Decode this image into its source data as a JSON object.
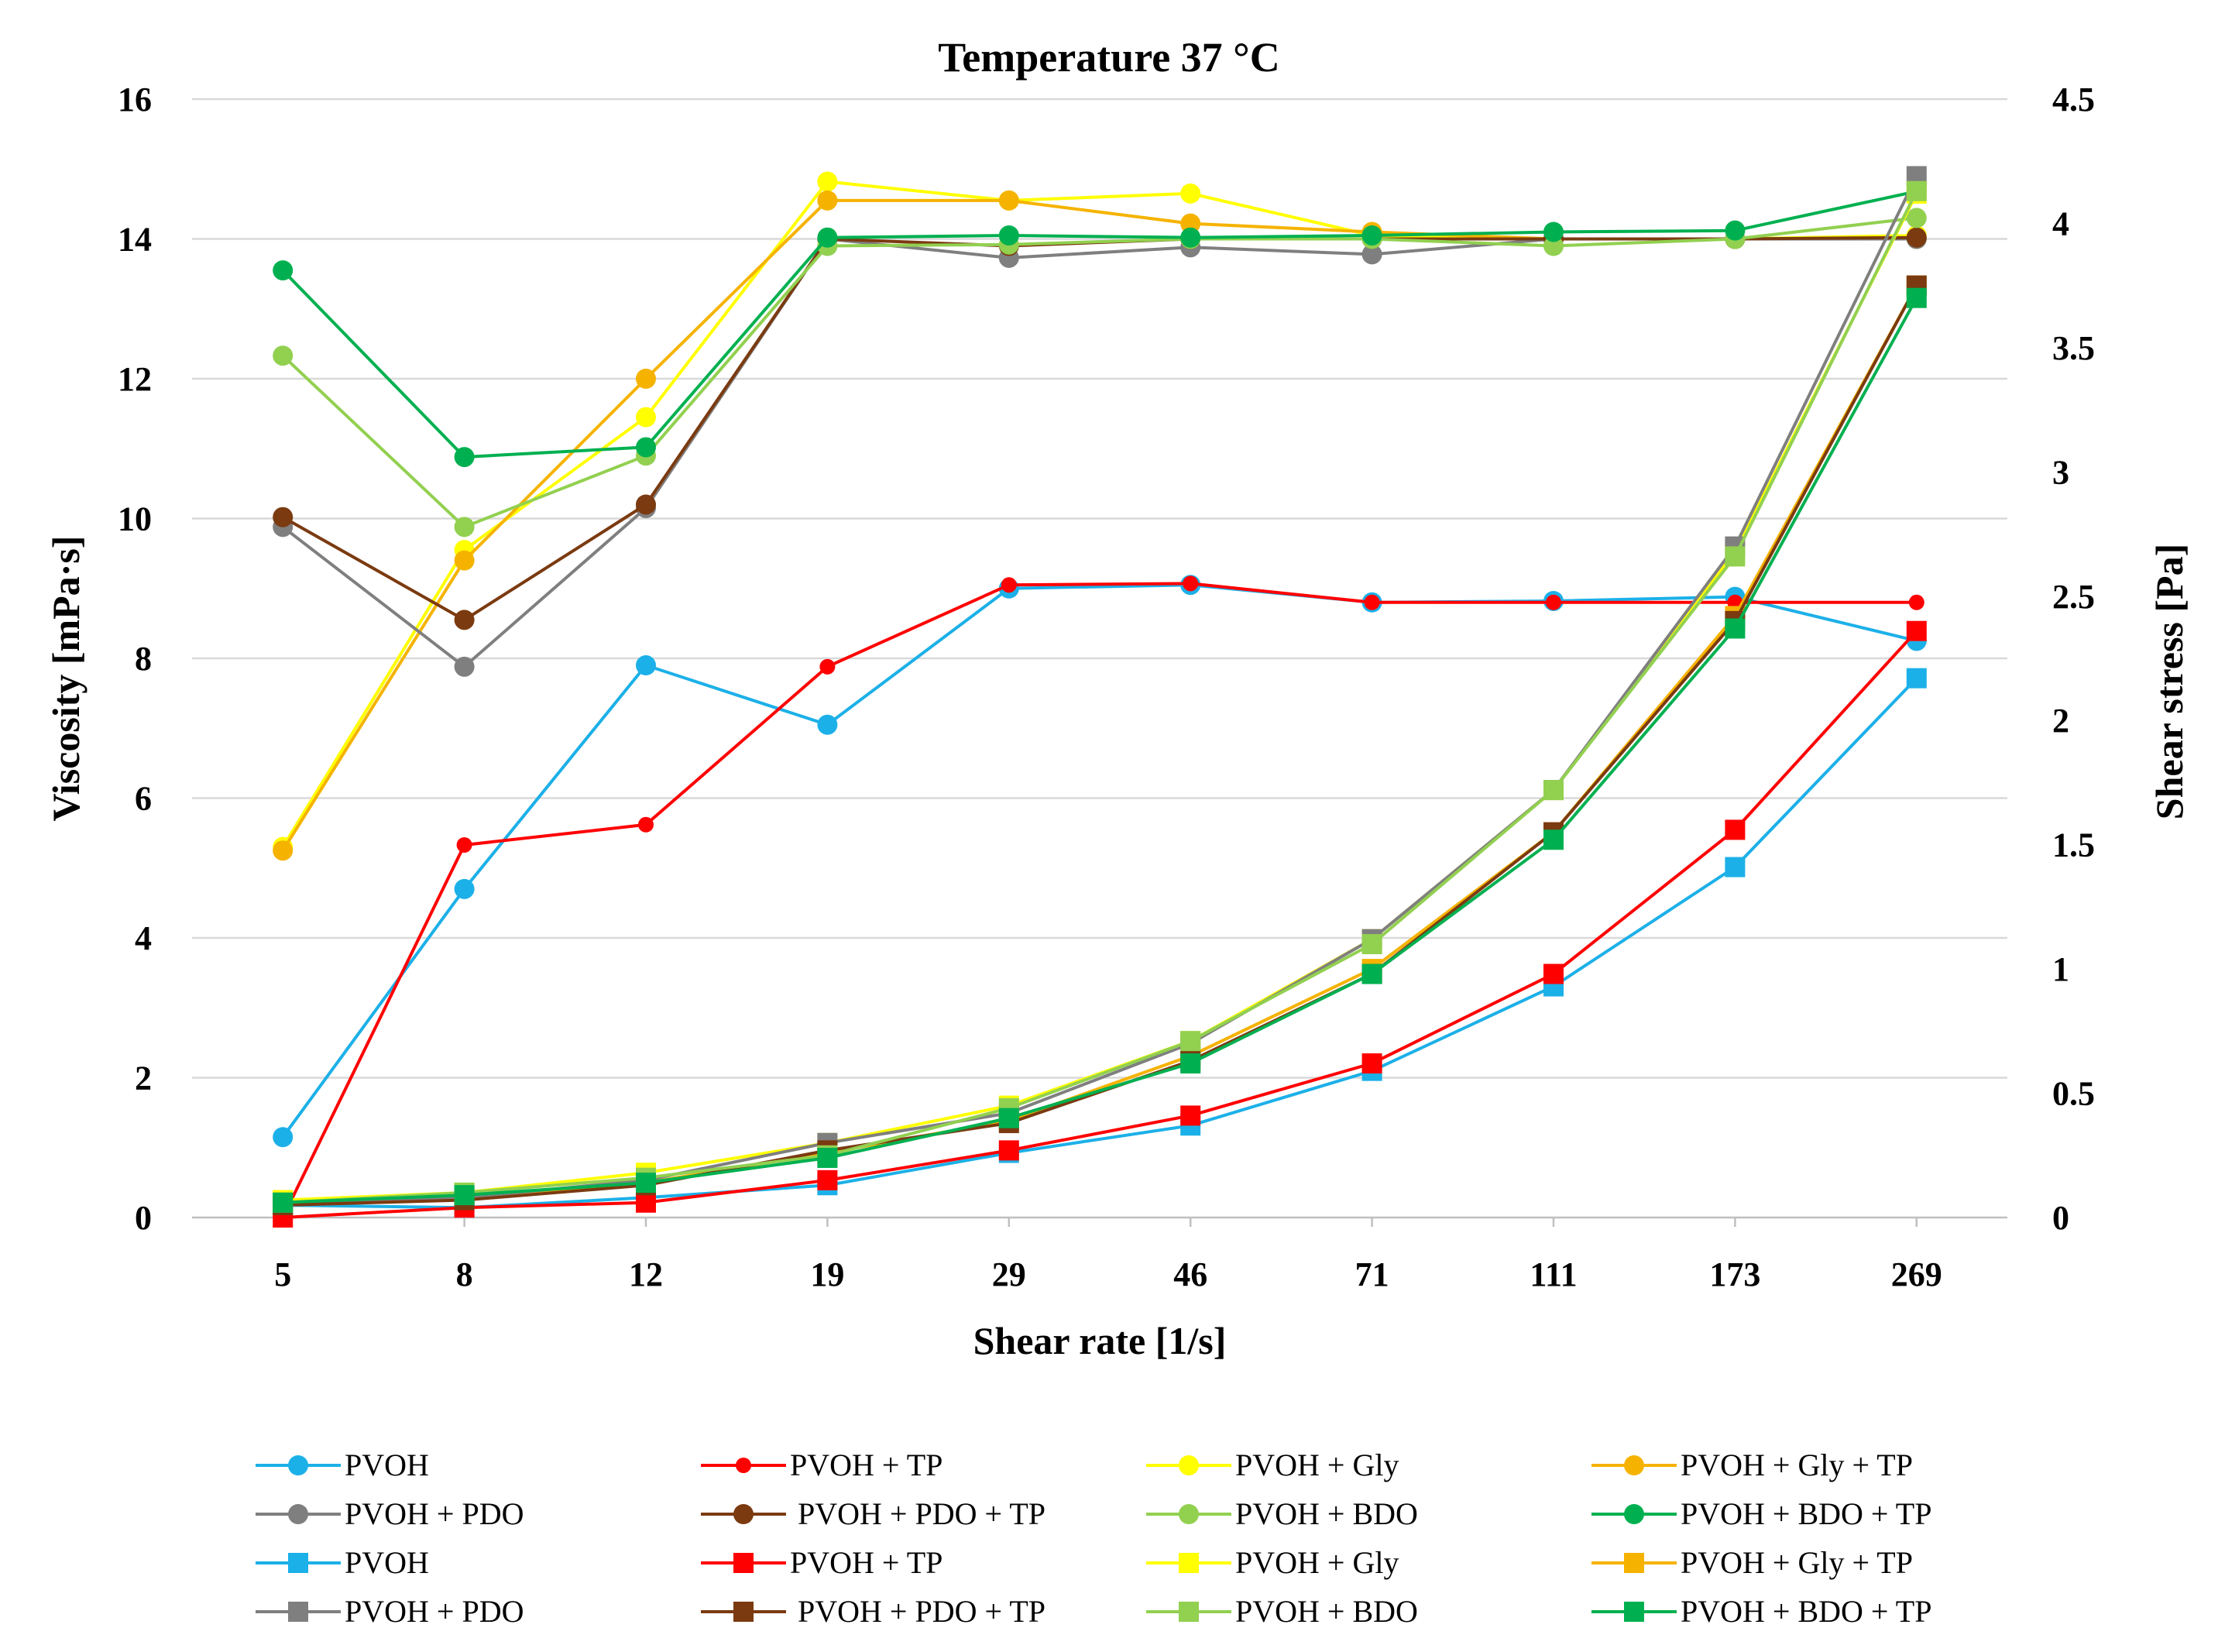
{
  "chart_data": {
    "type": "line",
    "title": "Temperature 37 °C",
    "xlabel": "Shear rate [1/s]",
    "ylabel_left": "Viscosity [mPa·s]",
    "ylabel_right": "Shear stress [Pa]",
    "categories": [
      "5",
      "8",
      "12",
      "19",
      "29",
      "46",
      "71",
      "111",
      "173",
      "269"
    ],
    "y_left": {
      "min": 0,
      "max": 16,
      "ticks": [
        "0",
        "2",
        "4",
        "6",
        "8",
        "10",
        "12",
        "14",
        "16"
      ]
    },
    "y_right": {
      "min": 0,
      "max": 4.5,
      "ticks": [
        "0",
        "0.5",
        "1",
        "1.5",
        "2",
        "2.5",
        "3",
        "3.5",
        "4",
        "4.5"
      ]
    },
    "grid": true,
    "legend_position": "bottom",
    "series": [
      {
        "name": "PVOH",
        "axis": "left",
        "marker": "circle",
        "color": "#1cb0e8",
        "values": [
          1.15,
          4.7,
          7.9,
          7.05,
          9.0,
          9.05,
          8.8,
          8.82,
          8.88,
          8.25
        ]
      },
      {
        "name": "PVOH + TP",
        "axis": "left",
        "marker": "circle-small",
        "color": "#ff0000",
        "values": [
          0.0,
          5.33,
          5.62,
          7.88,
          9.05,
          9.07,
          8.8,
          8.8,
          8.8,
          8.8
        ]
      },
      {
        "name": "PVOH + Gly",
        "axis": "left",
        "marker": "circle",
        "color": "#ffff00",
        "values": [
          5.3,
          9.55,
          11.45,
          14.82,
          14.55,
          14.65,
          14.05,
          14.0,
          14.0,
          14.05
        ]
      },
      {
        "name": "PVOH + Gly + TP",
        "axis": "left",
        "marker": "circle",
        "color": "#f5b300",
        "values": [
          5.25,
          9.4,
          12.0,
          14.55,
          14.55,
          14.22,
          14.1,
          14.0,
          14.0,
          14.0
        ]
      },
      {
        "name": "PVOH + PDO",
        "axis": "left",
        "marker": "circle",
        "color": "#7f7f7f",
        "values": [
          9.88,
          7.88,
          10.15,
          14.0,
          13.73,
          13.88,
          13.78,
          14.0,
          14.0,
          14.0
        ]
      },
      {
        "name": " PVOH + PDO + TP",
        "axis": "left",
        "marker": "circle",
        "color": "#7b3a10",
        "values": [
          10.02,
          8.55,
          10.2,
          14.0,
          13.9,
          14.0,
          14.0,
          14.0,
          14.0,
          14.02
        ]
      },
      {
        "name": "PVOH + BDO",
        "axis": "left",
        "marker": "circle",
        "color": "#92d050",
        "values": [
          12.33,
          9.88,
          10.9,
          13.9,
          13.92,
          14.0,
          14.0,
          13.9,
          14.0,
          14.3
        ]
      },
      {
        "name": "PVOH + BDO + TP",
        "axis": "left",
        "marker": "circle",
        "color": "#00b050",
        "values": [
          13.55,
          10.88,
          11.02,
          14.02,
          14.05,
          14.02,
          14.05,
          14.1,
          14.12,
          14.68
        ]
      },
      {
        "name": "PVOH",
        "axis": "right",
        "marker": "square",
        "color": "#1cb0e8",
        "values": [
          0.05,
          0.04,
          0.08,
          0.13,
          0.26,
          0.37,
          0.59,
          0.93,
          1.41,
          2.17
        ]
      },
      {
        "name": "PVOH + TP",
        "axis": "right",
        "marker": "square",
        "color": "#ff0000",
        "values": [
          0.0,
          0.04,
          0.06,
          0.15,
          0.27,
          0.41,
          0.62,
          0.98,
          1.56,
          2.36
        ]
      },
      {
        "name": "PVOH + Gly",
        "axis": "right",
        "marker": "square",
        "color": "#ffff00",
        "values": [
          0.07,
          0.1,
          0.18,
          0.3,
          0.45,
          0.71,
          1.12,
          1.72,
          2.68,
          4.12
        ]
      },
      {
        "name": "PVOH + Gly + TP",
        "axis": "right",
        "marker": "square",
        "color": "#f5b300",
        "values": [
          0.06,
          0.08,
          0.14,
          0.26,
          0.39,
          0.65,
          1.0,
          1.55,
          2.42,
          3.75
        ]
      },
      {
        "name": "PVOH + PDO",
        "axis": "right",
        "marker": "square",
        "color": "#7f7f7f",
        "values": [
          0.05,
          0.08,
          0.15,
          0.3,
          0.42,
          0.7,
          1.12,
          1.72,
          2.7,
          4.19
        ]
      },
      {
        "name": " PVOH + PDO + TP",
        "axis": "right",
        "marker": "square",
        "color": "#7b3a10",
        "values": [
          0.05,
          0.07,
          0.13,
          0.27,
          0.38,
          0.63,
          0.98,
          1.55,
          2.4,
          3.75
        ]
      },
      {
        "name": "PVOH + BDO",
        "axis": "right",
        "marker": "square",
        "color": "#92d050",
        "values": [
          0.06,
          0.1,
          0.16,
          0.25,
          0.44,
          0.71,
          1.1,
          1.72,
          2.66,
          4.13
        ]
      },
      {
        "name": "PVOH + BDO + TP",
        "axis": "right",
        "marker": "square",
        "color": "#00b050",
        "values": [
          0.06,
          0.09,
          0.14,
          0.24,
          0.4,
          0.62,
          0.98,
          1.52,
          2.37,
          3.7
        ]
      }
    ]
  }
}
